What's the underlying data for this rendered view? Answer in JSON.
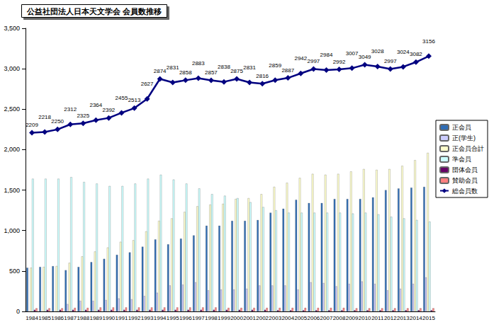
{
  "chart_data": {
    "type": "bar",
    "title": "公益社団法人日本天文学会 会員数推移",
    "categories": [
      "1984",
      "1985",
      "1986",
      "1987",
      "1988",
      "1989",
      "1990",
      "1991",
      "1992",
      "1993",
      "1994",
      "1995",
      "1996",
      "1997",
      "1998",
      "1999",
      "2000",
      "2001",
      "2002",
      "2003",
      "2004",
      "2005",
      "2006",
      "2007",
      "2008",
      "2009",
      "2010",
      "2011",
      "2012",
      "2013",
      "2014",
      "2015"
    ],
    "ylim": [
      0,
      3500
    ],
    "yticks": [
      0,
      500,
      1000,
      1500,
      2000,
      2500,
      3000,
      3500
    ],
    "grid": false,
    "legend": "right",
    "series": [
      {
        "name": "正会員",
        "type": "bar",
        "color": "#2f6db5",
        "values": [
          540,
          550,
          560,
          510,
          550,
          610,
          650,
          700,
          730,
          800,
          890,
          830,
          900,
          940,
          1060,
          1060,
          1120,
          1120,
          1130,
          1220,
          1270,
          1380,
          1340,
          1340,
          1390,
          1390,
          1390,
          1410,
          1500,
          1520,
          1530,
          1540
        ]
      },
      {
        "name": "正(学生)",
        "type": "bar",
        "color": "#ccccff",
        "values": [
          0,
          0,
          0,
          90,
          130,
          130,
          140,
          160,
          150,
          190,
          230,
          320,
          330,
          360,
          260,
          270,
          270,
          280,
          320,
          320,
          320,
          270,
          360,
          350,
          310,
          340,
          370,
          340,
          260,
          280,
          340,
          420
        ]
      },
      {
        "name": "正会員合計",
        "type": "bar",
        "color": "#ffffcc",
        "values": [
          540,
          550,
          560,
          600,
          680,
          740,
          790,
          860,
          880,
          990,
          1120,
          1150,
          1230,
          1300,
          1320,
          1330,
          1390,
          1400,
          1450,
          1540,
          1590,
          1650,
          1700,
          1690,
          1700,
          1730,
          1760,
          1750,
          1760,
          1800,
          1870,
          1960
        ]
      },
      {
        "name": "準会員",
        "type": "bar",
        "color": "#ccffff",
        "values": [
          1640,
          1640,
          1640,
          1660,
          1600,
          1580,
          1550,
          1550,
          1580,
          1640,
          1690,
          1630,
          1580,
          1520,
          1450,
          1430,
          1400,
          1350,
          1290,
          1250,
          1220,
          1220,
          1220,
          1220,
          1220,
          1210,
          1220,
          1200,
          1170,
          1150,
          1130,
          1110
        ]
      },
      {
        "name": "団体会員",
        "type": "bar",
        "color": "#660066",
        "values": [
          20,
          20,
          20,
          20,
          20,
          20,
          20,
          20,
          20,
          20,
          20,
          20,
          20,
          20,
          20,
          20,
          20,
          20,
          20,
          15,
          15,
          15,
          15,
          15,
          15,
          15,
          15,
          15,
          15,
          15,
          15,
          15
        ]
      },
      {
        "name": "賛助会員",
        "type": "bar",
        "color": "#ff8080",
        "values": [
          40,
          40,
          40,
          45,
          45,
          50,
          50,
          50,
          50,
          50,
          50,
          50,
          50,
          50,
          50,
          45,
          45,
          45,
          45,
          45,
          45,
          45,
          45,
          45,
          45,
          40,
          40,
          40,
          40,
          40,
          40,
          40
        ]
      },
      {
        "name": "総会員数",
        "type": "line",
        "color": "#000080",
        "marker": "diamond",
        "data_labels": true,
        "values": [
          2209,
          2218,
          2250,
          2312,
          2325,
          2364,
          2392,
          2455,
          2513,
          2627,
          2874,
          2831,
          2858,
          2883,
          2857,
          2838,
          2875,
          2831,
          2816,
          2859,
          2887,
          2942,
          2997,
          2984,
          2992,
          3007,
          3049,
          3028,
          2997,
          3024,
          3082,
          3156
        ]
      }
    ]
  }
}
